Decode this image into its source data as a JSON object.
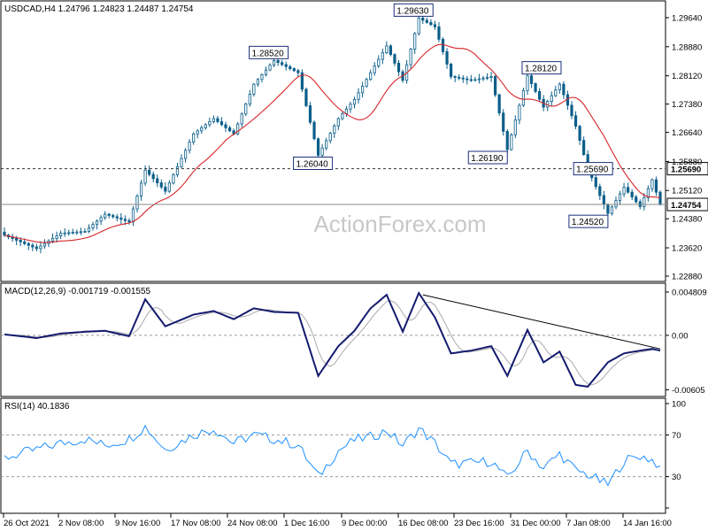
{
  "chart_data": [
    {
      "type": "candlestick",
      "symbol_line": "USDCAD,H4  1.24796 1.24823 1.24487 1.24754",
      "watermark": "ActionForex.com",
      "yticks": [
        "1.29640",
        "1.28880",
        "1.28120",
        "1.27380",
        "1.26640",
        "1.25880",
        "1.25120",
        "1.24380",
        "1.23620",
        "1.22880"
      ],
      "ylim": [
        1.2288,
        1.2994
      ],
      "xticks": [
        "26 Oct 2021",
        "2 Nov 08:00",
        "9 Nov 16:00",
        "17 Nov 08:00",
        "24 Nov 08:00",
        "1 Dec 16:00",
        "9 Dec 00:00",
        "16 Dec 08:00",
        "23 Dec 16:00",
        "31 Dec 00:00",
        "7 Jan 08:00",
        "14 Jan 16:00"
      ],
      "hline_level": 1.2569,
      "hline_label": "1.25690",
      "last_price": 1.24754,
      "last_price_label": "1.24754",
      "annotations": [
        {
          "label": "1.28520",
          "idx": 67,
          "value": 1.2852
        },
        {
          "label": "1.26040",
          "idx": 78,
          "value": 1.2604
        },
        {
          "label": "1.29630",
          "idx": 103,
          "value": 1.2963
        },
        {
          "label": "1.26190",
          "idx": 125,
          "value": 1.2619
        },
        {
          "label": "1.28120",
          "idx": 130,
          "value": 1.2812
        },
        {
          "label": "1.25690",
          "idx": 145,
          "value": 1.2569
        },
        {
          "label": "1.24520",
          "idx": 150,
          "value": 1.2452
        }
      ],
      "anchors": [
        [
          0,
          1.2395
        ],
        [
          8,
          1.236
        ],
        [
          14,
          1.24
        ],
        [
          20,
          1.2405
        ],
        [
          25,
          1.245
        ],
        [
          31,
          1.243
        ],
        [
          35,
          1.2565
        ],
        [
          40,
          1.251
        ],
        [
          47,
          1.266
        ],
        [
          52,
          1.27
        ],
        [
          57,
          1.266
        ],
        [
          62,
          1.279
        ],
        [
          67,
          1.2852
        ],
        [
          73,
          1.282
        ],
        [
          78,
          1.2604
        ],
        [
          83,
          1.27
        ],
        [
          87,
          1.275
        ],
        [
          91,
          1.282
        ],
        [
          95,
          1.289
        ],
        [
          99,
          1.28
        ],
        [
          103,
          1.2963
        ],
        [
          107,
          1.294
        ],
        [
          111,
          1.281
        ],
        [
          116,
          1.28
        ],
        [
          121,
          1.281
        ],
        [
          125,
          1.2619
        ],
        [
          130,
          1.2812
        ],
        [
          134,
          1.273
        ],
        [
          138,
          1.279
        ],
        [
          142,
          1.268
        ],
        [
          145,
          1.2569
        ],
        [
          150,
          1.2452
        ],
        [
          154,
          1.252
        ],
        [
          158,
          1.247
        ],
        [
          161,
          1.254
        ],
        [
          163,
          1.2475
        ]
      ]
    },
    {
      "type": "line",
      "title": "MACD(12,26,9) -0.001719 -0.001555",
      "yticks": [
        "0.004809",
        "0.00",
        "-0.00605"
      ],
      "ylim": [
        -0.0062,
        0.0052
      ],
      "trendline": [
        [
          104,
          0.0045
        ],
        [
          163,
          -0.0015
        ]
      ],
      "anchors": [
        [
          0,
          0.0001
        ],
        [
          8,
          -0.0003
        ],
        [
          14,
          0.0002
        ],
        [
          20,
          0.0004
        ],
        [
          25,
          0.0005
        ],
        [
          31,
          -0.0001
        ],
        [
          35,
          0.004
        ],
        [
          40,
          0.001
        ],
        [
          47,
          0.0023
        ],
        [
          52,
          0.0027
        ],
        [
          57,
          0.0018
        ],
        [
          62,
          0.003
        ],
        [
          67,
          0.0026
        ],
        [
          73,
          0.0025
        ],
        [
          78,
          -0.0045
        ],
        [
          83,
          -0.0012
        ],
        [
          87,
          0.0005
        ],
        [
          91,
          0.003
        ],
        [
          95,
          0.0045
        ],
        [
          99,
          0.0004
        ],
        [
          103,
          0.0047
        ],
        [
          107,
          0.002
        ],
        [
          111,
          -0.002
        ],
        [
          116,
          -0.0017
        ],
        [
          121,
          -0.0012
        ],
        [
          125,
          -0.0045
        ],
        [
          130,
          0.0006
        ],
        [
          134,
          -0.003
        ],
        [
          138,
          -0.0018
        ],
        [
          142,
          -0.0055
        ],
        [
          145,
          -0.0057
        ],
        [
          150,
          -0.003
        ],
        [
          154,
          -0.002
        ],
        [
          158,
          -0.0017
        ],
        [
          161,
          -0.0015
        ],
        [
          163,
          -0.0017
        ]
      ]
    },
    {
      "type": "line",
      "title": "RSI(14) 40.1836",
      "yticks": [
        "100",
        "70",
        "30",
        "0"
      ],
      "ylim": [
        0,
        100
      ],
      "levels": [
        70,
        30
      ],
      "anchors": [
        [
          0,
          48
        ],
        [
          8,
          56
        ],
        [
          14,
          62
        ],
        [
          20,
          66
        ],
        [
          25,
          60
        ],
        [
          31,
          66
        ],
        [
          35,
          78
        ],
        [
          40,
          56
        ],
        [
          47,
          70
        ],
        [
          52,
          76
        ],
        [
          57,
          62
        ],
        [
          62,
          70
        ],
        [
          67,
          66
        ],
        [
          73,
          60
        ],
        [
          78,
          30
        ],
        [
          83,
          55
        ],
        [
          87,
          65
        ],
        [
          91,
          68
        ],
        [
          95,
          74
        ],
        [
          99,
          60
        ],
        [
          103,
          76
        ],
        [
          107,
          62
        ],
        [
          111,
          42
        ],
        [
          116,
          43
        ],
        [
          121,
          45
        ],
        [
          125,
          28
        ],
        [
          130,
          55
        ],
        [
          134,
          38
        ],
        [
          138,
          52
        ],
        [
          142,
          36
        ],
        [
          145,
          32
        ],
        [
          150,
          22
        ],
        [
          154,
          45
        ],
        [
          158,
          50
        ],
        [
          161,
          46
        ],
        [
          163,
          40
        ]
      ]
    }
  ]
}
